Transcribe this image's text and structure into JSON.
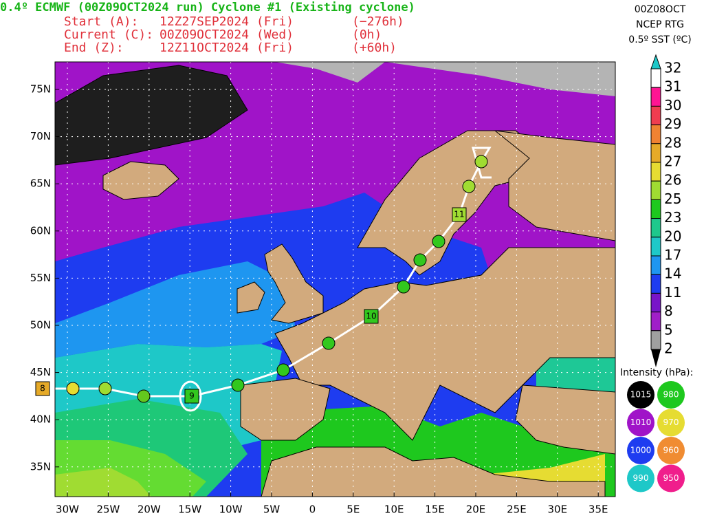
{
  "header": {
    "title": "0.4º ECMWF (00Z09OCT2024 run) Cyclone #1 (Existing cyclone)",
    "rows": [
      [
        "Start (A):",
        "12Z27SEP2024 (Fri)",
        "(−276h)"
      ],
      [
        "Current (C):",
        "00Z09OCT2024 (Wed)",
        "(0h)"
      ],
      [
        "End (Z):",
        "12Z11OCT2024 (Fri)",
        "(+60h)"
      ]
    ]
  },
  "info": [
    "00Z08OCT",
    "NCEP RTG",
    "0.5º SST (ºC)"
  ],
  "colorbar": {
    "labels": [
      32,
      31,
      30,
      29,
      28,
      27,
      26,
      25,
      23,
      20,
      17,
      14,
      11,
      8,
      5,
      2
    ]
  },
  "legend": {
    "title": "Intensity (hPa):",
    "items": [
      1015,
      980,
      1010,
      970,
      1000,
      960,
      990,
      950
    ]
  },
  "axes": {
    "lat": [
      "75N",
      "70N",
      "65N",
      "60N",
      "55N",
      "50N",
      "45N",
      "40N",
      "35N"
    ],
    "lon": [
      "30W",
      "25W",
      "20W",
      "15W",
      "10W",
      "5W",
      "0",
      "5E",
      "10E",
      "15E",
      "20E",
      "25E",
      "30E",
      "35E"
    ]
  },
  "track": {
    "labels": [
      "8",
      "9",
      "10",
      "11"
    ]
  }
}
